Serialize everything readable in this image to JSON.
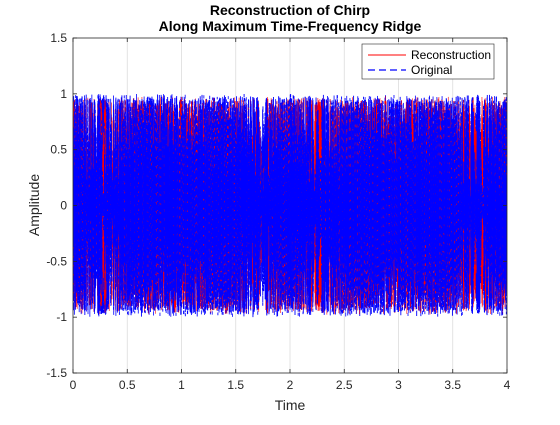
{
  "chart_data": {
    "type": "line",
    "title": [
      "Reconstruction of Chirp",
      "Along Maximum Time-Frequency Ridge"
    ],
    "xlabel": "Time",
    "ylabel": "Amplitude",
    "xlim": [
      0,
      4
    ],
    "ylim": [
      -1.5,
      1.5
    ],
    "xticks": [
      0,
      0.5,
      1,
      1.5,
      2,
      2.5,
      3,
      3.5,
      4
    ],
    "xtick_labels": [
      "0",
      "0.5",
      "1",
      "1.5",
      "2",
      "2.5",
      "3",
      "3.5",
      "4"
    ],
    "yticks": [
      -1.5,
      -1,
      -0.5,
      0,
      0.5,
      1,
      1.5
    ],
    "ytick_labels": [
      "-1.5",
      "-1",
      "-0.5",
      "0",
      "0.5",
      "1",
      "1.5"
    ],
    "grid": "x",
    "legend_position": "top-right",
    "series": [
      {
        "name": "Reconstruction",
        "color": "#ff0000",
        "style": "solid",
        "amplitude": 1.0,
        "x_range": [
          0,
          4
        ]
      },
      {
        "name": "Original",
        "color": "#0000ff",
        "style": "dashed",
        "amplitude": 1.0,
        "x_range": [
          0,
          4
        ]
      }
    ]
  }
}
